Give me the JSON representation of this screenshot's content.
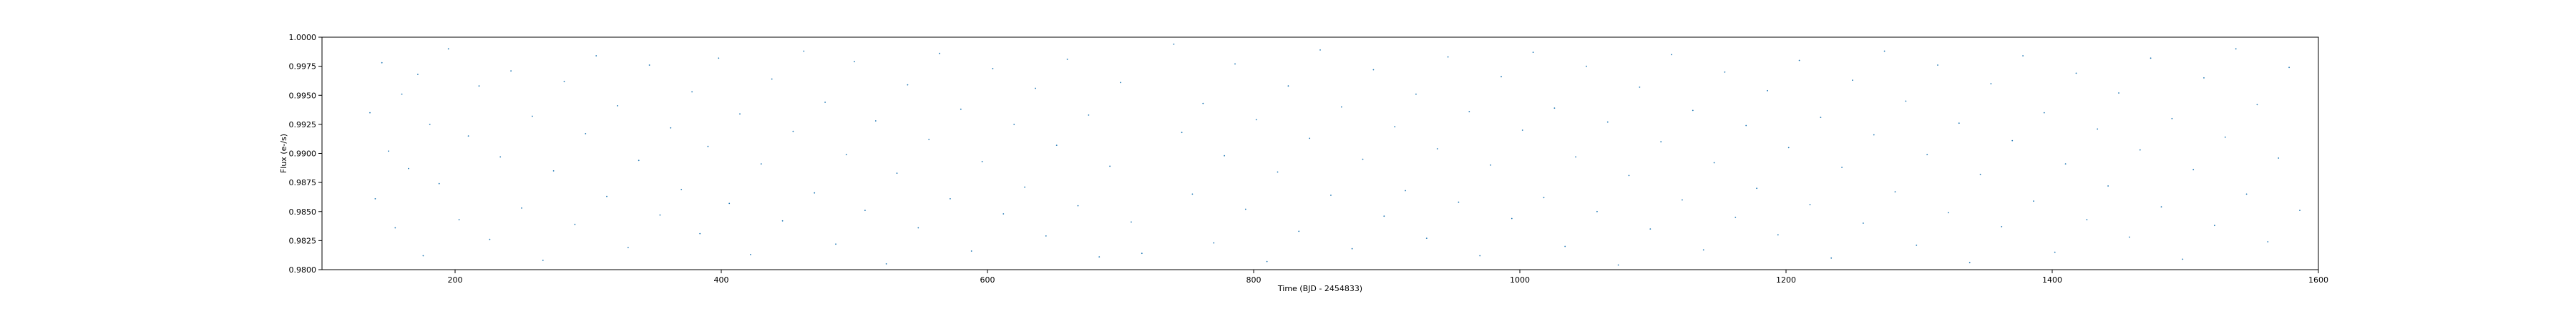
{
  "chart_data": {
    "type": "scatter",
    "title": "",
    "xlabel": "Time (BJD - 2454833)",
    "ylabel": "Flux (e-/s)",
    "xlim": [
      100,
      1600
    ],
    "ylim": [
      0.98,
      1.0
    ],
    "grid": false,
    "marker_color": "#1f77b4",
    "x_ticks": [
      {
        "value": 200,
        "label": "200"
      },
      {
        "value": 400,
        "label": "400"
      },
      {
        "value": 600,
        "label": "600"
      },
      {
        "value": 800,
        "label": "800"
      },
      {
        "value": 1000,
        "label": "1000"
      },
      {
        "value": 1200,
        "label": "1200"
      },
      {
        "value": 1400,
        "label": "1400"
      },
      {
        "value": 1600,
        "label": "1600"
      }
    ],
    "y_ticks": [
      {
        "value": 0.98,
        "label": "0.9800"
      },
      {
        "value": 0.9825,
        "label": "0.9825"
      },
      {
        "value": 0.985,
        "label": "0.9850"
      },
      {
        "value": 0.9875,
        "label": "0.9875"
      },
      {
        "value": 0.99,
        "label": "0.9900"
      },
      {
        "value": 0.9925,
        "label": "0.9925"
      },
      {
        "value": 0.995,
        "label": "0.9950"
      },
      {
        "value": 0.9975,
        "label": "0.9975"
      },
      {
        "value": 1.0,
        "label": "1.0000"
      }
    ],
    "series": [
      {
        "points": [
          [
            136,
            0.9935
          ],
          [
            140,
            0.9861
          ],
          [
            145,
            0.9978
          ],
          [
            150,
            0.9902
          ],
          [
            155,
            0.9836
          ],
          [
            160,
            0.9951
          ],
          [
            165,
            0.9887
          ],
          [
            172,
            0.9968
          ],
          [
            176,
            0.9812
          ],
          [
            181,
            0.9925
          ],
          [
            188,
            0.9874
          ],
          [
            195,
            0.999
          ],
          [
            203,
            0.9843
          ],
          [
            210,
            0.9915
          ],
          [
            218,
            0.9958
          ],
          [
            226,
            0.9826
          ],
          [
            234,
            0.9897
          ],
          [
            242,
            0.9971
          ],
          [
            250,
            0.9853
          ],
          [
            258,
            0.9932
          ],
          [
            266,
            0.9808
          ],
          [
            274,
            0.9885
          ],
          [
            282,
            0.9962
          ],
          [
            290,
            0.9839
          ],
          [
            298,
            0.9917
          ],
          [
            306,
            0.9984
          ],
          [
            314,
            0.9863
          ],
          [
            322,
            0.9941
          ],
          [
            330,
            0.9819
          ],
          [
            338,
            0.9894
          ],
          [
            346,
            0.9976
          ],
          [
            354,
            0.9847
          ],
          [
            362,
            0.9922
          ],
          [
            370,
            0.9869
          ],
          [
            378,
            0.9953
          ],
          [
            384,
            0.9831
          ],
          [
            390,
            0.9906
          ],
          [
            398,
            0.9982
          ],
          [
            406,
            0.9857
          ],
          [
            414,
            0.9934
          ],
          [
            422,
            0.9813
          ],
          [
            430,
            0.9891
          ],
          [
            438,
            0.9964
          ],
          [
            446,
            0.9842
          ],
          [
            454,
            0.9919
          ],
          [
            462,
            0.9988
          ],
          [
            470,
            0.9866
          ],
          [
            478,
            0.9944
          ],
          [
            486,
            0.9822
          ],
          [
            494,
            0.9899
          ],
          [
            500,
            0.9979
          ],
          [
            508,
            0.9851
          ],
          [
            516,
            0.9928
          ],
          [
            524,
            0.9805
          ],
          [
            532,
            0.9883
          ],
          [
            540,
            0.9959
          ],
          [
            548,
            0.9836
          ],
          [
            556,
            0.9912
          ],
          [
            564,
            0.9986
          ],
          [
            572,
            0.9861
          ],
          [
            580,
            0.9938
          ],
          [
            588,
            0.9816
          ],
          [
            596,
            0.9893
          ],
          [
            604,
            0.9973
          ],
          [
            612,
            0.9848
          ],
          [
            620,
            0.9925
          ],
          [
            628,
            0.9871
          ],
          [
            636,
            0.9956
          ],
          [
            644,
            0.9829
          ],
          [
            652,
            0.9907
          ],
          [
            660,
            0.9981
          ],
          [
            668,
            0.9855
          ],
          [
            676,
            0.9933
          ],
          [
            684,
            0.9811
          ],
          [
            692,
            0.9889
          ],
          [
            700,
            0.9961
          ],
          [
            708,
            0.9841
          ],
          [
            716,
            0.9814
          ],
          [
            740,
            0.9994
          ],
          [
            746,
            0.9918
          ],
          [
            754,
            0.9865
          ],
          [
            762,
            0.9943
          ],
          [
            770,
            0.9823
          ],
          [
            778,
            0.9898
          ],
          [
            786,
            0.9977
          ],
          [
            794,
            0.9852
          ],
          [
            802,
            0.9929
          ],
          [
            810,
            0.9807
          ],
          [
            818,
            0.9884
          ],
          [
            826,
            0.9958
          ],
          [
            834,
            0.9833
          ],
          [
            842,
            0.9913
          ],
          [
            850,
            0.9989
          ],
          [
            858,
            0.9864
          ],
          [
            866,
            0.994
          ],
          [
            874,
            0.9818
          ],
          [
            882,
            0.9895
          ],
          [
            890,
            0.9972
          ],
          [
            898,
            0.9846
          ],
          [
            906,
            0.9923
          ],
          [
            914,
            0.9868
          ],
          [
            922,
            0.9951
          ],
          [
            930,
            0.9827
          ],
          [
            938,
            0.9904
          ],
          [
            946,
            0.9983
          ],
          [
            954,
            0.9858
          ],
          [
            962,
            0.9936
          ],
          [
            970,
            0.9812
          ],
          [
            978,
            0.989
          ],
          [
            986,
            0.9966
          ],
          [
            994,
            0.9844
          ],
          [
            1002,
            0.992
          ],
          [
            1010,
            0.9987
          ],
          [
            1018,
            0.9862
          ],
          [
            1026,
            0.9939
          ],
          [
            1034,
            0.982
          ],
          [
            1042,
            0.9897
          ],
          [
            1050,
            0.9975
          ],
          [
            1058,
            0.985
          ],
          [
            1066,
            0.9927
          ],
          [
            1074,
            0.9804
          ],
          [
            1082,
            0.9881
          ],
          [
            1090,
            0.9957
          ],
          [
            1098,
            0.9835
          ],
          [
            1106,
            0.991
          ],
          [
            1114,
            0.9985
          ],
          [
            1122,
            0.986
          ],
          [
            1130,
            0.9937
          ],
          [
            1138,
            0.9817
          ],
          [
            1146,
            0.9892
          ],
          [
            1154,
            0.997
          ],
          [
            1162,
            0.9845
          ],
          [
            1170,
            0.9924
          ],
          [
            1178,
            0.987
          ],
          [
            1186,
            0.9954
          ],
          [
            1194,
            0.983
          ],
          [
            1202,
            0.9905
          ],
          [
            1210,
            0.998
          ],
          [
            1218,
            0.9856
          ],
          [
            1226,
            0.9931
          ],
          [
            1234,
            0.981
          ],
          [
            1242,
            0.9888
          ],
          [
            1250,
            0.9963
          ],
          [
            1258,
            0.984
          ],
          [
            1266,
            0.9916
          ],
          [
            1274,
            0.9988
          ],
          [
            1282,
            0.9867
          ],
          [
            1290,
            0.9945
          ],
          [
            1298,
            0.9821
          ],
          [
            1306,
            0.9899
          ],
          [
            1314,
            0.9976
          ],
          [
            1322,
            0.9849
          ],
          [
            1330,
            0.9926
          ],
          [
            1338,
            0.9806
          ],
          [
            1346,
            0.9882
          ],
          [
            1354,
            0.996
          ],
          [
            1362,
            0.9837
          ],
          [
            1370,
            0.9911
          ],
          [
            1378,
            0.9984
          ],
          [
            1386,
            0.9859
          ],
          [
            1394,
            0.9935
          ],
          [
            1402,
            0.9815
          ],
          [
            1410,
            0.9891
          ],
          [
            1418,
            0.9969
          ],
          [
            1426,
            0.9843
          ],
          [
            1434,
            0.9921
          ],
          [
            1442,
            0.9872
          ],
          [
            1450,
            0.9952
          ],
          [
            1458,
            0.9828
          ],
          [
            1466,
            0.9903
          ],
          [
            1474,
            0.9982
          ],
          [
            1482,
            0.9854
          ],
          [
            1490,
            0.993
          ],
          [
            1498,
            0.9809
          ],
          [
            1506,
            0.9886
          ],
          [
            1514,
            0.9965
          ],
          [
            1522,
            0.9838
          ],
          [
            1530,
            0.9914
          ],
          [
            1538,
            0.999
          ],
          [
            1546,
            0.9865
          ],
          [
            1554,
            0.9942
          ],
          [
            1562,
            0.9824
          ],
          [
            1570,
            0.9896
          ],
          [
            1578,
            0.9974
          ],
          [
            1586,
            0.9851
          ]
        ]
      }
    ]
  }
}
